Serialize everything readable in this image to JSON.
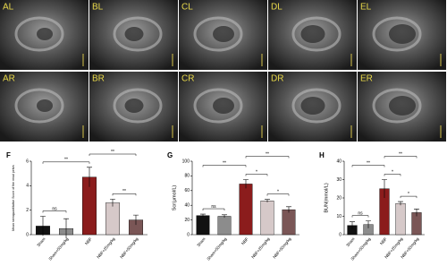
{
  "panels": {
    "top": [
      "AL",
      "BL",
      "CL",
      "DL",
      "EL"
    ],
    "bottom": [
      "AR",
      "BR",
      "CR",
      "DR",
      "ER"
    ]
  },
  "chart_data": [
    {
      "type": "bar",
      "panel": "F",
      "ylabel": "Mean semiquantitative Score of the renal pelvis",
      "categories": [
        "Sham",
        "Sham+50mg/kg",
        "NBF",
        "NBF+25mg/kg",
        "NBF+50mg/kg"
      ],
      "values": [
        0.7,
        0.5,
        4.7,
        2.6,
        1.2
      ],
      "errors": [
        0.8,
        0.8,
        0.8,
        0.3,
        0.4
      ],
      "colors": [
        "#111111",
        "#8c8c8c",
        "#8b1c1c",
        "#d6c9c9",
        "#7a5656"
      ],
      "ylim": [
        0,
        6
      ],
      "yticks": [
        0,
        2,
        4,
        6
      ],
      "annotations": [
        {
          "text": "ns",
          "pair": [
            "Sham",
            "Sham+50mg/kg"
          ]
        },
        {
          "text": "**",
          "pair": [
            "Sham",
            "NBF"
          ]
        },
        {
          "text": "**",
          "pair": [
            "NBF+25mg/kg",
            "NBF+50mg/kg"
          ]
        },
        {
          "text": "**",
          "pair": [
            "NBF",
            "NBF+50mg/kg"
          ]
        }
      ]
    },
    {
      "type": "bar",
      "panel": "G",
      "ylabel": "Scr(μmol/L)",
      "categories": [
        "Sham",
        "Sham+50mg/kg",
        "NBF",
        "NBF+25mg/kg",
        "NBF+50mg/kg"
      ],
      "values": [
        26,
        25,
        69,
        46,
        34
      ],
      "errors": [
        2,
        2,
        6,
        2,
        4
      ],
      "colors": [
        "#111111",
        "#8c8c8c",
        "#8b1c1c",
        "#d6c9c9",
        "#7a5656"
      ],
      "ylim": [
        0,
        100
      ],
      "yticks": [
        0,
        20,
        40,
        60,
        80,
        100
      ],
      "annotations": [
        {
          "text": "ns",
          "pair": [
            "Sham",
            "Sham+50mg/kg"
          ]
        },
        {
          "text": "*",
          "pair": [
            "NBF+25mg/kg",
            "NBF+50mg/kg"
          ]
        },
        {
          "text": "*",
          "pair": [
            "NBF",
            "NBF+25mg/kg"
          ]
        },
        {
          "text": "**",
          "pair": [
            "Sham",
            "NBF"
          ]
        },
        {
          "text": "**",
          "pair": [
            "NBF",
            "NBF+50mg/kg"
          ]
        }
      ]
    },
    {
      "type": "bar",
      "panel": "H",
      "ylabel": "BUN(mmol/L)",
      "categories": [
        "Sham",
        "Sham+50mg/kg",
        "NBF",
        "NBF+25mg/kg",
        "NBF+50mg/kg"
      ],
      "values": [
        5,
        5.5,
        25,
        17,
        12
      ],
      "errors": [
        2,
        2,
        5,
        1,
        2
      ],
      "colors": [
        "#111111",
        "#8c8c8c",
        "#8b1c1c",
        "#d6c9c9",
        "#7a5656"
      ],
      "ylim": [
        0,
        40
      ],
      "yticks": [
        0,
        10,
        20,
        30,
        40
      ],
      "annotations": [
        {
          "text": "ns",
          "pair": [
            "Sham",
            "Sham+50mg/kg"
          ]
        },
        {
          "text": "*",
          "pair": [
            "NBF+25mg/kg",
            "NBF+50mg/kg"
          ]
        },
        {
          "text": "*",
          "pair": [
            "NBF",
            "NBF+25mg/kg"
          ]
        },
        {
          "text": "**",
          "pair": [
            "Sham",
            "NBF"
          ]
        },
        {
          "text": "**",
          "pair": [
            "NBF",
            "NBF+50mg/kg"
          ]
        }
      ]
    }
  ]
}
